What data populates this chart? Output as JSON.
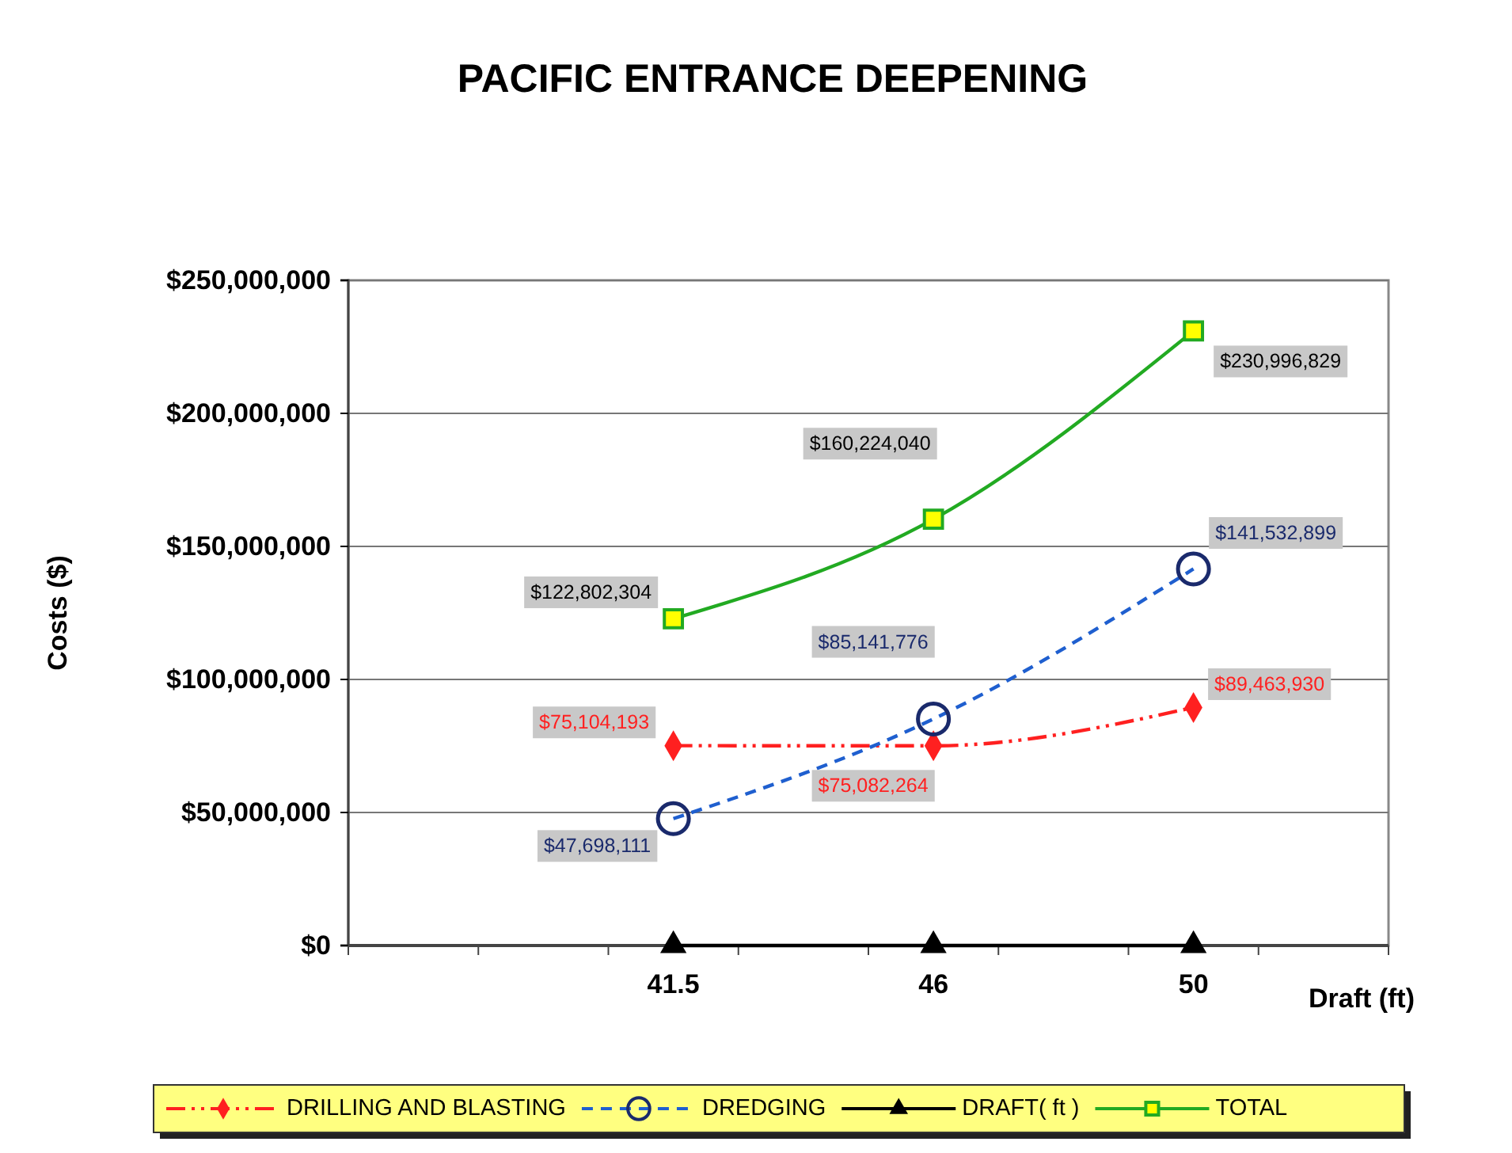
{
  "chart_data": {
    "type": "line",
    "title": "PACIFIC ENTRANCE DEEPENING",
    "xlabel": "Draft (ft)",
    "ylabel": "Costs ($)",
    "categories": [
      null,
      null,
      "41.5",
      null,
      "46",
      null,
      "50",
      null
    ],
    "series": [
      {
        "name": "DRILLING AND BLASTING",
        "color": "#ff2020",
        "marker": "diamond",
        "line_style": "dashdot",
        "values": [
          null,
          null,
          75104193,
          null,
          75082264,
          null,
          89463930,
          null
        ],
        "value_labels": [
          null,
          null,
          "$75,104,193",
          null,
          "$75,082,264",
          null,
          "$89,463,930",
          null
        ]
      },
      {
        "name": "DREDGING",
        "color": "#1f5fcf",
        "marker": "circle",
        "line_style": "dashed",
        "values": [
          null,
          null,
          47698111,
          null,
          85141776,
          null,
          141532899,
          null
        ],
        "value_labels": [
          null,
          null,
          "$47,698,111",
          null,
          "$85,141,776",
          null,
          "$141,532,899",
          null
        ]
      },
      {
        "name": "DRAFT( ft )",
        "color": "#000000",
        "marker": "triangle",
        "line_style": "solid",
        "values": [
          null,
          null,
          0,
          null,
          0,
          null,
          0,
          null
        ]
      },
      {
        "name": "TOTAL",
        "color": "#22aa22",
        "marker": "square",
        "line_style": "solid",
        "values": [
          null,
          null,
          122802304,
          null,
          160224040,
          null,
          230996829,
          null
        ],
        "value_labels": [
          null,
          null,
          "$122,802,304",
          null,
          "$160,224,040",
          null,
          "$230,996,829",
          null
        ]
      }
    ],
    "ylim": [
      0,
      250000000
    ],
    "yticks": [
      {
        "value": 0,
        "label": "$0"
      },
      {
        "value": 50000000,
        "label": "$50,000,000"
      },
      {
        "value": 100000000,
        "label": "$100,000,000"
      },
      {
        "value": 150000000,
        "label": "$150,000,000"
      },
      {
        "value": 200000000,
        "label": "$200,000,000"
      },
      {
        "value": 250000000,
        "label": "$250,000,000"
      }
    ],
    "grid": "y",
    "legend": "bottom"
  }
}
